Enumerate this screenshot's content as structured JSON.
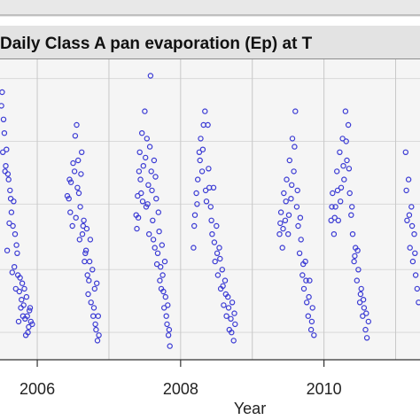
{
  "chart_data": {
    "type": "scatter",
    "title": "Daily Class A pan evaporation (Ep) at T",
    "xlabel": "Year",
    "ylabel": "",
    "xlim": [
      2005.48,
      2011.34
    ],
    "ylim": [
      0.0,
      11.0
    ],
    "x_ticks": [
      2006,
      2008,
      2010
    ],
    "x_tick_labels": [
      "2006",
      "2008",
      "2010"
    ],
    "season_boundaries": [
      2006.0,
      2007.0,
      2008.0,
      2009.0,
      2010.0,
      2011.0
    ],
    "y_gridlines": [
      1.0,
      3.3,
      5.7,
      8.0,
      10.3
    ],
    "grid": true,
    "legend": "none",
    "marker_color": "#3a3ad4",
    "panel_background": "#f5f5f5",
    "series": [
      {
        "name": "",
        "points": [
          [
            2005.5,
            9.3
          ],
          [
            2005.52,
            7.6
          ],
          [
            2005.54,
            8.3
          ],
          [
            2005.55,
            6.9
          ],
          [
            2005.57,
            7.7
          ],
          [
            2005.58,
            4.0
          ],
          [
            2005.6,
            6.6
          ],
          [
            2005.62,
            6.2
          ],
          [
            2005.64,
            5.4
          ],
          [
            2005.65,
            3.2
          ],
          [
            2005.67,
            5.8
          ],
          [
            2005.69,
            4.6
          ],
          [
            2005.7,
            2.6
          ],
          [
            2005.72,
            3.9
          ],
          [
            2005.74,
            1.4
          ],
          [
            2005.76,
            3.0
          ],
          [
            2005.78,
            2.2
          ],
          [
            2005.8,
            1.6
          ],
          [
            2005.82,
            2.6
          ],
          [
            2005.84,
            0.9
          ],
          [
            2005.86,
            1.6
          ],
          [
            2005.88,
            1.2
          ],
          [
            2005.9,
            1.9
          ],
          [
            2005.93,
            1.3
          ],
          [
            2005.51,
            9.8
          ],
          [
            2005.53,
            8.8
          ],
          [
            2005.56,
            7.1
          ],
          [
            2005.59,
            6.8
          ],
          [
            2005.61,
            5.0
          ],
          [
            2005.63,
            5.9
          ],
          [
            2005.66,
            4.9
          ],
          [
            2005.68,
            3.4
          ],
          [
            2005.71,
            4.2
          ],
          [
            2005.73,
            3.1
          ],
          [
            2005.75,
            2.5
          ],
          [
            2005.77,
            1.9
          ],
          [
            2005.79,
            2.8
          ],
          [
            2005.81,
            2.0
          ],
          [
            2005.83,
            1.5
          ],
          [
            2005.85,
            2.3
          ],
          [
            2005.87,
            1.0
          ],
          [
            2005.89,
            1.8
          ],
          [
            2005.91,
            1.4
          ],
          [
            2006.42,
            6.0
          ],
          [
            2006.45,
            6.6
          ],
          [
            2006.46,
            5.4
          ],
          [
            2006.5,
            7.2
          ],
          [
            2006.53,
            8.2
          ],
          [
            2006.55,
            8.6
          ],
          [
            2006.57,
            7.3
          ],
          [
            2006.58,
            6.1
          ],
          [
            2006.6,
            5.6
          ],
          [
            2006.62,
            7.6
          ],
          [
            2006.63,
            4.6
          ],
          [
            2006.65,
            5.1
          ],
          [
            2006.66,
            3.6
          ],
          [
            2006.68,
            4.0
          ],
          [
            2006.7,
            3.1
          ],
          [
            2006.71,
            2.4
          ],
          [
            2006.73,
            3.6
          ],
          [
            2006.75,
            2.1
          ],
          [
            2006.78,
            1.6
          ],
          [
            2006.8,
            2.6
          ],
          [
            2006.82,
            1.1
          ],
          [
            2006.84,
            0.7
          ],
          [
            2006.86,
            0.9
          ],
          [
            2006.44,
            5.9
          ],
          [
            2006.47,
            6.5
          ],
          [
            2006.49,
            4.9
          ],
          [
            2006.52,
            6.9
          ],
          [
            2006.54,
            5.2
          ],
          [
            2006.56,
            6.3
          ],
          [
            2006.59,
            4.4
          ],
          [
            2006.61,
            6.8
          ],
          [
            2006.64,
            4.9
          ],
          [
            2006.67,
            3.9
          ],
          [
            2006.69,
            4.8
          ],
          [
            2006.72,
            2.9
          ],
          [
            2006.74,
            4.4
          ],
          [
            2006.77,
            3.3
          ],
          [
            2006.79,
            1.9
          ],
          [
            2006.81,
            1.3
          ],
          [
            2006.83,
            2.8
          ],
          [
            2006.85,
            1.6
          ],
          [
            2007.38,
            5.3
          ],
          [
            2007.4,
            6.0
          ],
          [
            2007.42,
            6.9
          ],
          [
            2007.43,
            7.6
          ],
          [
            2007.45,
            6.1
          ],
          [
            2007.46,
            8.3
          ],
          [
            2007.48,
            7.1
          ],
          [
            2007.5,
            9.1
          ],
          [
            2007.52,
            5.6
          ],
          [
            2007.53,
            8.1
          ],
          [
            2007.55,
            6.4
          ],
          [
            2007.56,
            4.6
          ],
          [
            2007.58,
            10.4
          ],
          [
            2007.59,
            6.9
          ],
          [
            2007.61,
            5.1
          ],
          [
            2007.63,
            7.3
          ],
          [
            2007.64,
            4.1
          ],
          [
            2007.66,
            5.9
          ],
          [
            2007.68,
            3.9
          ],
          [
            2007.7,
            4.7
          ],
          [
            2007.72,
            3.4
          ],
          [
            2007.73,
            2.6
          ],
          [
            2007.75,
            3.1
          ],
          [
            2007.77,
            1.9
          ],
          [
            2007.79,
            2.3
          ],
          [
            2007.81,
            1.3
          ],
          [
            2007.83,
            0.9
          ],
          [
            2007.85,
            0.5
          ],
          [
            2007.39,
            4.8
          ],
          [
            2007.41,
            5.2
          ],
          [
            2007.44,
            6.6
          ],
          [
            2007.47,
            5.8
          ],
          [
            2007.51,
            7.4
          ],
          [
            2007.54,
            5.7
          ],
          [
            2007.57,
            7.8
          ],
          [
            2007.6,
            6.2
          ],
          [
            2007.62,
            4.4
          ],
          [
            2007.65,
            6.7
          ],
          [
            2007.67,
            3.5
          ],
          [
            2007.69,
            5.4
          ],
          [
            2007.71,
            2.9
          ],
          [
            2007.74,
            4.2
          ],
          [
            2007.76,
            2.5
          ],
          [
            2007.78,
            3.6
          ],
          [
            2007.8,
            1.6
          ],
          [
            2007.82,
            2.0
          ],
          [
            2007.84,
            1.1
          ],
          [
            2008.18,
            4.1
          ],
          [
            2008.2,
            5.3
          ],
          [
            2008.22,
            6.1
          ],
          [
            2008.24,
            6.6
          ],
          [
            2008.26,
            7.6
          ],
          [
            2008.28,
            8.1
          ],
          [
            2008.3,
            6.9
          ],
          [
            2008.32,
            8.6
          ],
          [
            2008.34,
            9.1
          ],
          [
            2008.36,
            5.8
          ],
          [
            2008.38,
            8.6
          ],
          [
            2008.4,
            6.3
          ],
          [
            2008.42,
            5.6
          ],
          [
            2008.44,
            4.6
          ],
          [
            2008.46,
            6.3
          ],
          [
            2008.48,
            3.6
          ],
          [
            2008.5,
            4.9
          ],
          [
            2008.52,
            3.1
          ],
          [
            2008.54,
            4.1
          ],
          [
            2008.56,
            2.6
          ],
          [
            2008.58,
            3.3
          ],
          [
            2008.6,
            2.0
          ],
          [
            2008.62,
            2.9
          ],
          [
            2008.64,
            1.6
          ],
          [
            2008.66,
            2.3
          ],
          [
            2008.68,
            1.1
          ],
          [
            2008.7,
            1.5
          ],
          [
            2008.72,
            2.1
          ],
          [
            2008.74,
            0.7
          ],
          [
            2008.76,
            1.3
          ],
          [
            2008.19,
            4.9
          ],
          [
            2008.23,
            5.7
          ],
          [
            2008.27,
            7.3
          ],
          [
            2008.31,
            7.7
          ],
          [
            2008.35,
            6.2
          ],
          [
            2008.39,
            7.0
          ],
          [
            2008.43,
            5.1
          ],
          [
            2008.47,
            4.3
          ],
          [
            2008.51,
            3.9
          ],
          [
            2008.55,
            3.7
          ],
          [
            2008.59,
            2.7
          ],
          [
            2008.63,
            2.4
          ],
          [
            2008.67,
            1.9
          ],
          [
            2008.71,
            1.0
          ],
          [
            2008.75,
            1.7
          ],
          [
            2009.38,
            4.6
          ],
          [
            2009.4,
            5.4
          ],
          [
            2009.42,
            4.1
          ],
          [
            2009.44,
            6.1
          ],
          [
            2009.46,
            5.1
          ],
          [
            2009.48,
            6.6
          ],
          [
            2009.5,
            4.6
          ],
          [
            2009.52,
            7.3
          ],
          [
            2009.54,
            5.9
          ],
          [
            2009.56,
            8.1
          ],
          [
            2009.58,
            6.9
          ],
          [
            2009.6,
            9.1
          ],
          [
            2009.62,
            5.6
          ],
          [
            2009.64,
            4.9
          ],
          [
            2009.66,
            3.9
          ],
          [
            2009.68,
            4.4
          ],
          [
            2009.7,
            3.1
          ],
          [
            2009.72,
            2.6
          ],
          [
            2009.74,
            3.6
          ],
          [
            2009.76,
            2.1
          ],
          [
            2009.78,
            1.6
          ],
          [
            2009.8,
            2.9
          ],
          [
            2009.82,
            1.1
          ],
          [
            2009.84,
            1.9
          ],
          [
            2009.86,
            0.9
          ],
          [
            2009.39,
            5.0
          ],
          [
            2009.43,
            4.8
          ],
          [
            2009.47,
            5.8
          ],
          [
            2009.51,
            5.3
          ],
          [
            2009.55,
            6.4
          ],
          [
            2009.59,
            7.8
          ],
          [
            2009.63,
            6.2
          ],
          [
            2009.67,
            5.2
          ],
          [
            2009.71,
            3.5
          ],
          [
            2009.75,
            2.9
          ],
          [
            2009.79,
            2.3
          ],
          [
            2009.83,
            1.4
          ],
          [
            2010.1,
            5.1
          ],
          [
            2010.12,
            6.1
          ],
          [
            2010.14,
            4.6
          ],
          [
            2010.16,
            5.6
          ],
          [
            2010.18,
            6.9
          ],
          [
            2010.2,
            5.1
          ],
          [
            2010.22,
            7.6
          ],
          [
            2010.24,
            6.3
          ],
          [
            2010.26,
            8.1
          ],
          [
            2010.28,
            6.6
          ],
          [
            2010.3,
            9.1
          ],
          [
            2010.32,
            7.3
          ],
          [
            2010.34,
            8.6
          ],
          [
            2010.36,
            6.1
          ],
          [
            2010.38,
            5.3
          ],
          [
            2010.4,
            4.6
          ],
          [
            2010.42,
            3.6
          ],
          [
            2010.44,
            4.1
          ],
          [
            2010.46,
            2.9
          ],
          [
            2010.48,
            3.3
          ],
          [
            2010.5,
            2.1
          ],
          [
            2010.52,
            2.6
          ],
          [
            2010.54,
            1.6
          ],
          [
            2010.56,
            1.9
          ],
          [
            2010.58,
            1.1
          ],
          [
            2010.6,
            0.8
          ],
          [
            2010.62,
            1.4
          ],
          [
            2010.11,
            5.6
          ],
          [
            2010.15,
            5.2
          ],
          [
            2010.19,
            6.2
          ],
          [
            2010.23,
            5.8
          ],
          [
            2010.27,
            7.1
          ],
          [
            2010.31,
            8.0
          ],
          [
            2010.35,
            7.0
          ],
          [
            2010.39,
            5.6
          ],
          [
            2010.43,
            3.8
          ],
          [
            2010.47,
            4.0
          ],
          [
            2010.51,
            2.4
          ],
          [
            2010.55,
            2.2
          ],
          [
            2010.59,
            1.7
          ],
          [
            2011.14,
            7.6
          ],
          [
            2011.16,
            5.1
          ],
          [
            2011.18,
            6.6
          ],
          [
            2011.2,
            4.1
          ],
          [
            2011.22,
            5.6
          ],
          [
            2011.24,
            3.6
          ],
          [
            2011.26,
            4.6
          ],
          [
            2011.28,
            3.1
          ],
          [
            2011.3,
            2.6
          ],
          [
            2011.32,
            2.1
          ],
          [
            2011.15,
            6.2
          ],
          [
            2011.19,
            5.3
          ],
          [
            2011.23,
            4.9
          ],
          [
            2011.27,
            3.9
          ]
        ]
      }
    ]
  }
}
